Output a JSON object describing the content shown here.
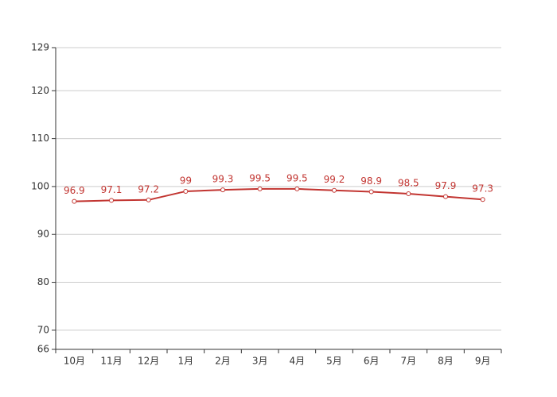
{
  "chart_data": {
    "type": "line",
    "categories": [
      "10月",
      "11月",
      "12月",
      "1月",
      "2月",
      "3月",
      "4月",
      "5月",
      "6月",
      "7月",
      "8月",
      "9月"
    ],
    "values": [
      96.9,
      97.1,
      97.2,
      99,
      99.3,
      99.5,
      99.5,
      99.2,
      98.9,
      98.5,
      97.9,
      97.3
    ],
    "color": "#c23531",
    "ylim": [
      66,
      129
    ],
    "yticks": [
      66,
      70,
      80,
      90,
      100,
      110,
      120,
      129
    ],
    "grid": true
  }
}
